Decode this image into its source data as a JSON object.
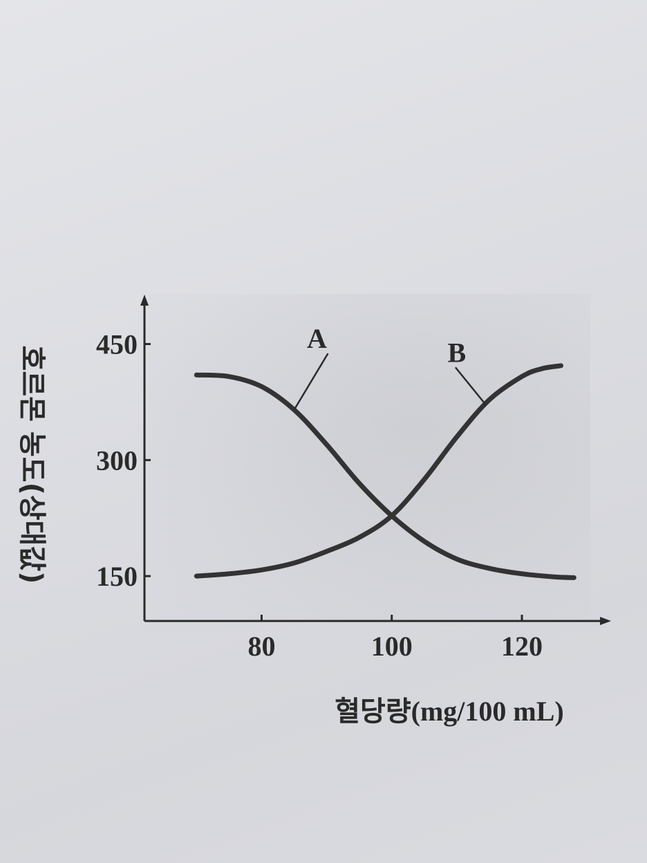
{
  "chart_data": {
    "type": "line",
    "title": "",
    "xlabel": "혈당량(mg/100 mL)",
    "ylabel": "호르몬 농도(상대값)",
    "xlim": [
      62,
      132
    ],
    "ylim": [
      92,
      505
    ],
    "xticks": [
      80,
      100,
      120
    ],
    "yticks": [
      150,
      300,
      450
    ],
    "grid": false,
    "series": [
      {
        "name": "A",
        "color": "#333333",
        "x": [
          70,
          75,
          80,
          85,
          90,
          95,
          100,
          105,
          110,
          115,
          120,
          125,
          128
        ],
        "y": [
          410,
          408,
          395,
          365,
          320,
          270,
          228,
          195,
          172,
          160,
          153,
          149,
          148
        ]
      },
      {
        "name": "B",
        "color": "#333333",
        "x": [
          70,
          75,
          80,
          85,
          90,
          95,
          100,
          105,
          110,
          115,
          120,
          123,
          126
        ],
        "y": [
          150,
          153,
          158,
          167,
          182,
          200,
          228,
          275,
          330,
          378,
          408,
          418,
          422
        ]
      }
    ],
    "annotations": [
      {
        "series": "A",
        "label": "A",
        "x_label": 88.5,
        "y_label": 445,
        "x_point": 85,
        "y_point": 365
      },
      {
        "series": "B",
        "label": "B",
        "x_label": 110,
        "y_label": 427,
        "x_point": 114.5,
        "y_point": 371
      }
    ]
  }
}
